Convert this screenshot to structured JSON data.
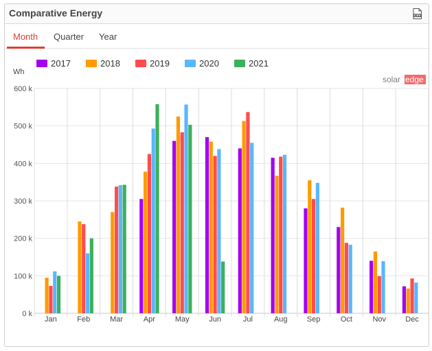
{
  "widget": {
    "title": "Comparative Energy",
    "csv_icon": "csv-export-icon",
    "brand_text": "solar",
    "brand_accent": "edge",
    "accent_color": "#e03e2d"
  },
  "tabs": [
    {
      "label": "Month",
      "active": true
    },
    {
      "label": "Quarter",
      "active": false
    },
    {
      "label": "Year",
      "active": false
    }
  ],
  "chart_data": {
    "type": "bar",
    "ylabel": "Wh",
    "ylim": [
      0,
      600000
    ],
    "yticks": [
      0,
      100000,
      200000,
      300000,
      400000,
      500000,
      600000
    ],
    "ytick_labels": [
      "0 k",
      "100 k",
      "200 k",
      "300 k",
      "400 k",
      "500 k",
      "600 k"
    ],
    "grid": true,
    "legend_position": "top",
    "categories": [
      "Jan",
      "Feb",
      "Mar",
      "Apr",
      "May",
      "Jun",
      "Jul",
      "Aug",
      "Sep",
      "Oct",
      "Nov",
      "Dec"
    ],
    "series": [
      {
        "name": "2017",
        "color": "#a400f0",
        "values": [
          null,
          null,
          null,
          305000,
          460000,
          470000,
          440000,
          415000,
          280000,
          230000,
          140000,
          72000
        ]
      },
      {
        "name": "2018",
        "color": "#ff9a00",
        "values": [
          95000,
          245000,
          270000,
          378000,
          525000,
          458000,
          513000,
          367000,
          355000,
          282000,
          165000,
          66000
        ]
      },
      {
        "name": "2019",
        "color": "#ff4c4c",
        "values": [
          73000,
          238000,
          338000,
          425000,
          483000,
          420000,
          537000,
          418000,
          305000,
          188000,
          99000,
          93000
        ]
      },
      {
        "name": "2020",
        "color": "#5ab6ff",
        "values": [
          112000,
          160000,
          342000,
          493000,
          557000,
          438000,
          455000,
          423000,
          348000,
          183000,
          139000,
          82000
        ]
      },
      {
        "name": "2021",
        "color": "#3cb05c",
        "values": [
          100000,
          200000,
          343000,
          558000,
          503000,
          138000,
          null,
          null,
          null,
          null,
          null,
          null
        ]
      }
    ]
  }
}
